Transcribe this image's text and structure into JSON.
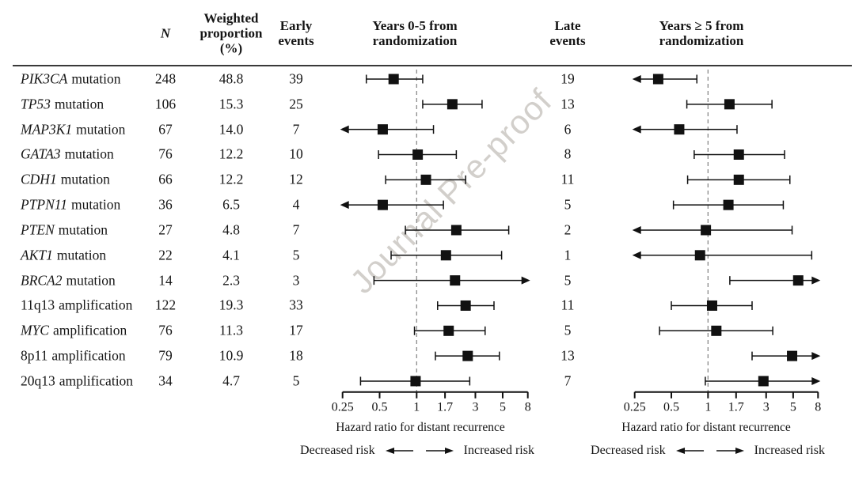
{
  "watermark": "Journal Pre-proof",
  "header": {
    "n": "N",
    "weighted_proportion": "Weighted\nproportion\n(%)",
    "early_events": "Early\nevents",
    "late_events": "Late\nevents",
    "early_plot_title": "Years 0-5 from\nrandomization",
    "late_plot_title": "Years ≥ 5 from\nrandomization"
  },
  "axis": {
    "caption": "Hazard ratio for distant recurrence",
    "ticks": [
      "0.25",
      "0.5",
      "1",
      "1.7",
      "3",
      "5",
      "8"
    ]
  },
  "legend": {
    "decreased": "Decreased risk",
    "increased": "Increased risk"
  },
  "table": {
    "rows": [
      {
        "gene": "PIK3CA",
        "gene_italic": true,
        "suffix": "mutation",
        "n": "248",
        "weighted_proportion": "48.8",
        "early_events": "39",
        "late_events": "19"
      },
      {
        "gene": "TP53",
        "gene_italic": true,
        "suffix": "mutation",
        "n": "106",
        "weighted_proportion": "15.3",
        "early_events": "25",
        "late_events": "13"
      },
      {
        "gene": "MAP3K1",
        "gene_italic": true,
        "suffix": "mutation",
        "n": "67",
        "weighted_proportion": "14.0",
        "early_events": "7",
        "late_events": "6"
      },
      {
        "gene": "GATA3",
        "gene_italic": true,
        "suffix": "mutation",
        "n": "76",
        "weighted_proportion": "12.2",
        "early_events": "10",
        "late_events": "8"
      },
      {
        "gene": "CDH1",
        "gene_italic": true,
        "suffix": "mutation",
        "n": "66",
        "weighted_proportion": "12.2",
        "early_events": "12",
        "late_events": "11"
      },
      {
        "gene": "PTPN11",
        "gene_italic": true,
        "suffix": "mutation",
        "n": "36",
        "weighted_proportion": "6.5",
        "early_events": "4",
        "late_events": "5"
      },
      {
        "gene": "PTEN",
        "gene_italic": true,
        "suffix": "mutation",
        "n": "27",
        "weighted_proportion": "4.8",
        "early_events": "7",
        "late_events": "2"
      },
      {
        "gene": "AKT1",
        "gene_italic": true,
        "suffix": "mutation",
        "n": "22",
        "weighted_proportion": "4.1",
        "early_events": "5",
        "late_events": "1"
      },
      {
        "gene": "BRCA2",
        "gene_italic": true,
        "suffix": "mutation",
        "n": "14",
        "weighted_proportion": "2.3",
        "early_events": "3",
        "late_events": "5"
      },
      {
        "gene": "11q13",
        "gene_italic": false,
        "suffix": "amplification",
        "n": "122",
        "weighted_proportion": "19.3",
        "early_events": "33",
        "late_events": "11"
      },
      {
        "gene": "MYC",
        "gene_italic": true,
        "suffix": "amplification",
        "n": "76",
        "weighted_proportion": "11.3",
        "early_events": "17",
        "late_events": "5"
      },
      {
        "gene": "8p11",
        "gene_italic": false,
        "suffix": "amplification",
        "n": "79",
        "weighted_proportion": "10.9",
        "early_events": "18",
        "late_events": "13"
      },
      {
        "gene": "20q13",
        "gene_italic": false,
        "suffix": "amplification",
        "n": "34",
        "weighted_proportion": "4.7",
        "early_events": "5",
        "late_events": "7"
      }
    ]
  },
  "chart_data": [
    {
      "type": "forest",
      "title": "Years 0-5 from randomization",
      "xlabel": "Hazard ratio for distant recurrence",
      "x_scale": "log",
      "x_range": [
        0.25,
        8
      ],
      "x_ticks": [
        0.25,
        0.5,
        1,
        1.7,
        3,
        5,
        8
      ],
      "reference_line": 1,
      "grid": false,
      "points": [
        {
          "label": "PIK3CA mutation",
          "hr": 0.65,
          "ci_low": 0.39,
          "ci_high": 1.12,
          "low_arrow": false,
          "high_arrow": false
        },
        {
          "label": "TP53 mutation",
          "hr": 1.95,
          "ci_low": 1.12,
          "ci_high": 3.4,
          "low_arrow": false,
          "high_arrow": false
        },
        {
          "label": "MAP3K1 mutation",
          "hr": 0.53,
          "ci_low": 0.25,
          "ci_high": 1.37,
          "low_arrow": true,
          "high_arrow": false
        },
        {
          "label": "GATA3 mutation",
          "hr": 1.02,
          "ci_low": 0.49,
          "ci_high": 2.1,
          "low_arrow": false,
          "high_arrow": false
        },
        {
          "label": "CDH1 mutation",
          "hr": 1.19,
          "ci_low": 0.56,
          "ci_high": 2.5,
          "low_arrow": false,
          "high_arrow": false
        },
        {
          "label": "PTPN11 mutation",
          "hr": 0.53,
          "ci_low": 0.25,
          "ci_high": 1.65,
          "low_arrow": true,
          "high_arrow": false
        },
        {
          "label": "PTEN mutation",
          "hr": 2.1,
          "ci_low": 0.81,
          "ci_high": 5.6,
          "low_arrow": false,
          "high_arrow": false
        },
        {
          "label": "AKT1 mutation",
          "hr": 1.73,
          "ci_low": 0.62,
          "ci_high": 4.9,
          "low_arrow": false,
          "high_arrow": false
        },
        {
          "label": "BRCA2 mutation",
          "hr": 2.05,
          "ci_low": 0.45,
          "ci_high": 8,
          "low_arrow": false,
          "high_arrow": true
        },
        {
          "label": "11q13 amplification",
          "hr": 2.5,
          "ci_low": 1.48,
          "ci_high": 4.25,
          "low_arrow": false,
          "high_arrow": false
        },
        {
          "label": "MYC amplification",
          "hr": 1.82,
          "ci_low": 0.96,
          "ci_high": 3.6,
          "low_arrow": false,
          "high_arrow": false
        },
        {
          "label": "8p11 amplification",
          "hr": 2.6,
          "ci_low": 1.42,
          "ci_high": 4.7,
          "low_arrow": false,
          "high_arrow": false
        },
        {
          "label": "20q13 amplification",
          "hr": 0.98,
          "ci_low": 0.35,
          "ci_high": 2.7,
          "low_arrow": false,
          "high_arrow": false
        }
      ]
    },
    {
      "type": "forest",
      "title": "Years ≥ 5 from randomization",
      "xlabel": "Hazard ratio for distant recurrence",
      "x_scale": "log",
      "x_range": [
        0.25,
        8
      ],
      "x_ticks": [
        0.25,
        0.5,
        1,
        1.7,
        3,
        5,
        8
      ],
      "reference_line": 1,
      "grid": false,
      "points": [
        {
          "label": "PIK3CA mutation",
          "hr": 0.39,
          "ci_low": 0.25,
          "ci_high": 0.81,
          "low_arrow": true,
          "high_arrow": false
        },
        {
          "label": "TP53 mutation",
          "hr": 1.5,
          "ci_low": 0.67,
          "ci_high": 3.35,
          "low_arrow": false,
          "high_arrow": false
        },
        {
          "label": "MAP3K1 mutation",
          "hr": 0.58,
          "ci_low": 0.25,
          "ci_high": 1.73,
          "low_arrow": true,
          "high_arrow": false
        },
        {
          "label": "GATA3 mutation",
          "hr": 1.79,
          "ci_low": 0.77,
          "ci_high": 4.25,
          "low_arrow": false,
          "high_arrow": false
        },
        {
          "label": "CDH1 mutation",
          "hr": 1.79,
          "ci_low": 0.68,
          "ci_high": 4.7,
          "low_arrow": false,
          "high_arrow": false
        },
        {
          "label": "PTPN11 mutation",
          "hr": 1.47,
          "ci_low": 0.52,
          "ci_high": 4.15,
          "low_arrow": false,
          "high_arrow": false
        },
        {
          "label": "PTEN mutation",
          "hr": 0.96,
          "ci_low": 0.25,
          "ci_high": 4.9,
          "low_arrow": true,
          "high_arrow": false
        },
        {
          "label": "AKT1 mutation",
          "hr": 0.86,
          "ci_low": 0.25,
          "ci_high": 7.1,
          "low_arrow": true,
          "high_arrow": false
        },
        {
          "label": "BRCA2 mutation",
          "hr": 5.5,
          "ci_low": 1.51,
          "ci_high": 8,
          "low_arrow": false,
          "high_arrow": true
        },
        {
          "label": "11q13 amplification",
          "hr": 1.08,
          "ci_low": 0.5,
          "ci_high": 2.3,
          "low_arrow": false,
          "high_arrow": false
        },
        {
          "label": "MYC amplification",
          "hr": 1.17,
          "ci_low": 0.4,
          "ci_high": 3.4,
          "low_arrow": false,
          "high_arrow": false
        },
        {
          "label": "8p11 amplification",
          "hr": 4.9,
          "ci_low": 2.3,
          "ci_high": 8,
          "low_arrow": false,
          "high_arrow": true
        },
        {
          "label": "20q13 amplification",
          "hr": 2.85,
          "ci_low": 0.95,
          "ci_high": 8,
          "low_arrow": false,
          "high_arrow": true
        }
      ]
    }
  ]
}
